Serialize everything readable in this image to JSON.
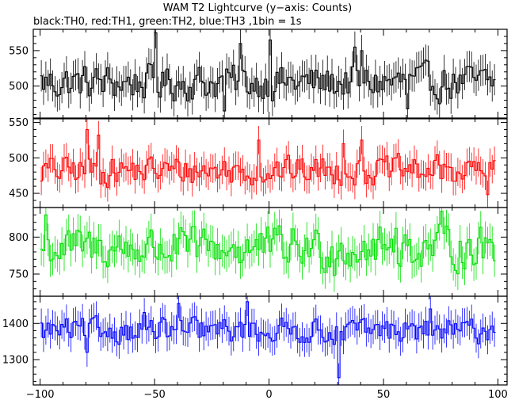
{
  "chart_data": {
    "type": "line",
    "title": "WAM T2 Lightcurve (y−axis: Counts)",
    "subtitle": "black:TH0, red:TH1, green:TH2, blue:TH3 ,1bin = 1s",
    "x_range": [
      -100,
      98
    ],
    "x_ticks": [
      -100,
      -50,
      0,
      50,
      100
    ],
    "x_tick_labels": [
      "−100",
      "−50",
      "0",
      "50",
      "100"
    ],
    "grid": false,
    "panels": [
      {
        "series_name": "TH0",
        "color": "#000000",
        "ylim": [
          455,
          580
        ],
        "yticks": [
          500,
          550
        ],
        "ytick_labels": [
          "500",
          "550"
        ],
        "base": 505,
        "amplitude": 22,
        "err": 22,
        "features": [
          {
            "x": -50,
            "y": 575
          },
          {
            "x": -13,
            "y": 560
          },
          {
            "x": 0,
            "y": 565
          },
          {
            "x": 37,
            "y": 555
          },
          {
            "x": 40,
            "y": 550
          },
          {
            "x": -20,
            "y": 465
          },
          {
            "x": 60,
            "y": 468
          }
        ]
      },
      {
        "series_name": "TH1",
        "color": "#ff0000",
        "ylim": [
          430,
          555
        ],
        "yticks": [
          450,
          500,
          550
        ],
        "ytick_labels": [
          "450",
          "500",
          "550"
        ],
        "base": 482,
        "amplitude": 18,
        "err": 20,
        "features": [
          {
            "x": -80,
            "y": 540
          },
          {
            "x": -75,
            "y": 532
          },
          {
            "x": 40,
            "y": 525
          },
          {
            "x": 32,
            "y": 520
          },
          {
            "x": -5,
            "y": 525
          },
          {
            "x": 95,
            "y": 448
          }
        ]
      },
      {
        "series_name": "TH2",
        "color": "#00e000",
        "ylim": [
          720,
          840
        ],
        "yticks": [
          750,
          800
        ],
        "ytick_labels": [
          "750",
          "800"
        ],
        "base": 785,
        "amplitude": 25,
        "err": 22,
        "features": [
          {
            "x": -98,
            "y": 830
          },
          {
            "x": 75,
            "y": 835
          },
          {
            "x": 55,
            "y": 812
          },
          {
            "x": 24,
            "y": 752
          },
          {
            "x": 28,
            "y": 748
          }
        ]
      },
      {
        "series_name": "TH3",
        "color": "#0000ff",
        "ylim": [
          1230,
          1475
        ],
        "yticks": [
          1300,
          1400
        ],
        "ytick_labels": [
          "1300",
          "1400"
        ],
        "base": 1380,
        "amplitude": 30,
        "err": 40,
        "features": [
          {
            "x": 30,
            "y": 1250
          },
          {
            "x": -10,
            "y": 1460
          },
          {
            "x": -40,
            "y": 1455
          },
          {
            "x": -55,
            "y": 1430
          },
          {
            "x": 70,
            "y": 1440
          },
          {
            "x": -80,
            "y": 1320
          }
        ]
      }
    ]
  }
}
